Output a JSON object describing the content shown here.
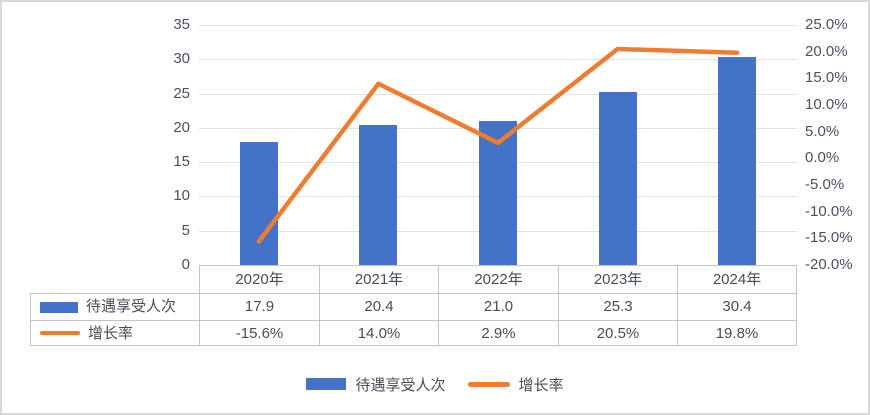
{
  "chart_data": {
    "type": "combo_bar_line",
    "title": "",
    "categories": [
      "2020年",
      "2021年",
      "2022年",
      "2023年",
      "2024年"
    ],
    "series": [
      {
        "name": "待遇享受人次",
        "chart": "bar",
        "axis": "left",
        "values": [
          17.9,
          20.4,
          21.0,
          25.3,
          30.4
        ],
        "labels": [
          "17.9",
          "20.4",
          "21.0",
          "25.3",
          "30.4"
        ],
        "color": "#4472C4"
      },
      {
        "name": "增长率",
        "chart": "line",
        "axis": "right",
        "values": [
          -15.6,
          14.0,
          2.9,
          20.5,
          19.8
        ],
        "labels": [
          "-15.6%",
          "14.0%",
          "2.9%",
          "20.5%",
          "19.8%"
        ],
        "color": "#ED7D31"
      }
    ],
    "left_axis": {
      "min": 0,
      "max": 35,
      "tick_labels": [
        "35",
        "30",
        "25",
        "20",
        "15",
        "10",
        "5",
        "0"
      ]
    },
    "right_axis": {
      "min": -20,
      "max": 25,
      "tick_labels": [
        "25.0%",
        "20.0%",
        "15.0%",
        "10.0%",
        "5.0%",
        "0.0%",
        "-5.0%",
        "-10.0%",
        "-15.0%",
        "-20.0%"
      ]
    },
    "legend_position": "bottom",
    "grid": true,
    "data_table_shown": true
  },
  "colors": {
    "bar": "#4472C4",
    "line": "#ED7D31",
    "grid": "#e2e2e2",
    "table_border": "#c3c3c3",
    "text": "#474d59"
  }
}
